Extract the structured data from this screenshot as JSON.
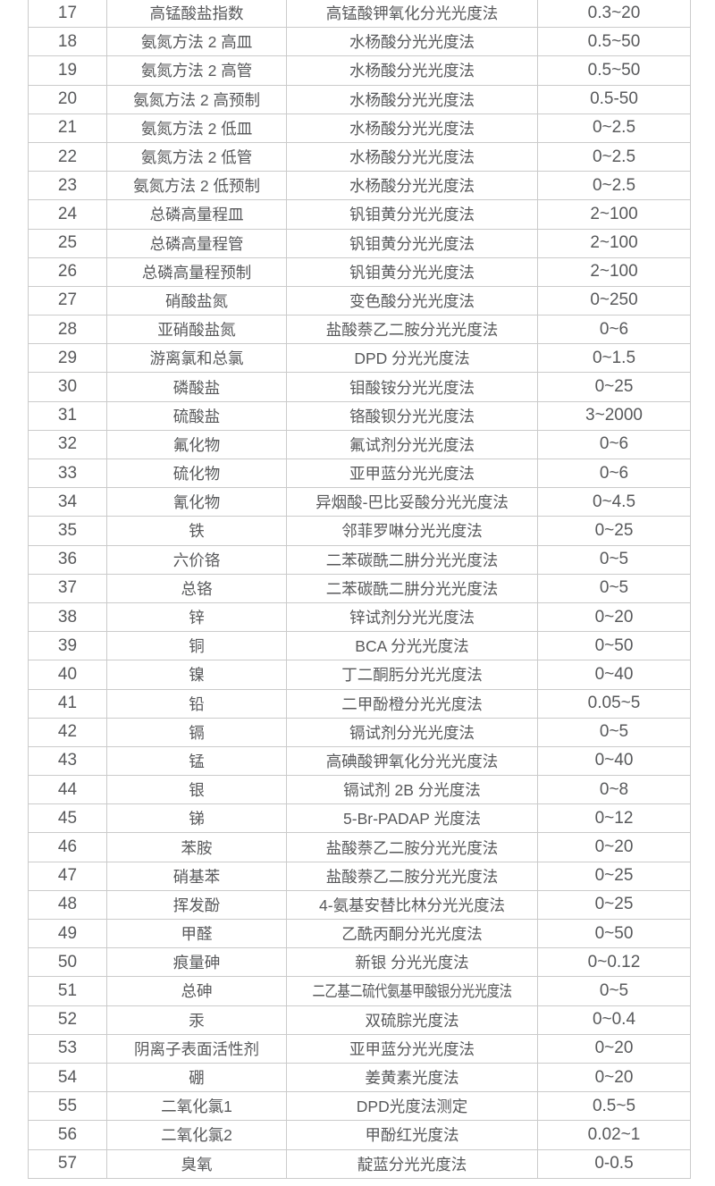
{
  "colors": {
    "background": "#ffffff",
    "text": "#58595b",
    "grid_border": "#cbcbcb"
  },
  "table": {
    "description": "Water quality parameter methods and ranges table, rows 17-57 (top row partially cropped)",
    "column_keys": [
      "index",
      "parameter",
      "method",
      "range"
    ],
    "rows": [
      [
        "17",
        "高锰酸盐指数",
        "高锰酸钾氧化分光光度法",
        "0.3~20"
      ],
      [
        "18",
        "氨氮方法 2 高皿",
        "水杨酸分光光度法",
        "0.5~50"
      ],
      [
        "19",
        "氨氮方法 2 高管",
        "水杨酸分光光度法",
        "0.5~50"
      ],
      [
        "20",
        "氨氮方法 2 高预制",
        "水杨酸分光光度法",
        "0.5-50"
      ],
      [
        "21",
        "氨氮方法 2 低皿",
        "水杨酸分光光度法",
        "0~2.5"
      ],
      [
        "22",
        "氨氮方法 2 低管",
        "水杨酸分光光度法",
        "0~2.5"
      ],
      [
        "23",
        "氨氮方法 2 低预制",
        "水杨酸分光光度法",
        "0~2.5"
      ],
      [
        "24",
        "总磷高量程皿",
        "钒钼黄分光光度法",
        "2~100"
      ],
      [
        "25",
        "总磷高量程管",
        "钒钼黄分光光度法",
        "2~100"
      ],
      [
        "26",
        "总磷高量程预制",
        "钒钼黄分光光度法",
        "2~100"
      ],
      [
        "27",
        "硝酸盐氮",
        "变色酸分光光度法",
        "0~250"
      ],
      [
        "28",
        "亚硝酸盐氮",
        "盐酸萘乙二胺分光光度法",
        "0~6"
      ],
      [
        "29",
        "游离氯和总氯",
        "DPD 分光光度法",
        "0~1.5"
      ],
      [
        "30",
        "磷酸盐",
        "钼酸铵分光光度法",
        "0~25"
      ],
      [
        "31",
        "硫酸盐",
        "铬酸钡分光光度法",
        "3~2000"
      ],
      [
        "32",
        "氟化物",
        "氟试剂分光光度法",
        "0~6"
      ],
      [
        "33",
        "硫化物",
        "亚甲蓝分光光度法",
        "0~6"
      ],
      [
        "34",
        "氰化物",
        "异烟酸-巴比妥酸分光光度法",
        "0~4.5"
      ],
      [
        "35",
        "铁",
        "邻菲罗啉分光光度法",
        "0~25"
      ],
      [
        "36",
        "六价铬",
        "二苯碳酰二肼分光光度法",
        "0~5"
      ],
      [
        "37",
        "总铬",
        "二苯碳酰二肼分光光度法",
        "0~5"
      ],
      [
        "38",
        "锌",
        "锌试剂分光光度法",
        "0~20"
      ],
      [
        "39",
        "铜",
        "BCA 分光光度法",
        "0~50"
      ],
      [
        "40",
        "镍",
        "丁二酮肟分光光度法",
        "0~40"
      ],
      [
        "41",
        "铅",
        "二甲酚橙分光光度法",
        "0.05~5"
      ],
      [
        "42",
        "镉",
        "镉试剂分光光度法",
        "0~5"
      ],
      [
        "43",
        "锰",
        "高碘酸钾氧化分光光度法",
        "0~40"
      ],
      [
        "44",
        "银",
        "镉试剂 2B 分光度法",
        "0~8"
      ],
      [
        "45",
        "锑",
        "5-Br-PADAP 光度法",
        "0~12"
      ],
      [
        "46",
        "苯胺",
        "盐酸萘乙二胺分光光度法",
        "0~20"
      ],
      [
        "47",
        "硝基苯",
        "盐酸萘乙二胺分光光度法",
        "0~25"
      ],
      [
        "48",
        "挥发酚",
        "4-氨基安替比林分光光度法",
        "0~25"
      ],
      [
        "49",
        "甲醛",
        "乙酰丙酮分光光度法",
        "0~50"
      ],
      [
        "50",
        "痕量砷",
        "新银 分光光度法",
        "0~0.12"
      ],
      [
        "51",
        "总砷",
        "二乙基二硫代氨基甲酸银分光光度法",
        "0~5"
      ],
      [
        "52",
        "汞",
        "双硫腙光度法",
        "0~0.4"
      ],
      [
        "53",
        "阴离子表面活性剂",
        "亚甲蓝分光光度法",
        "0~20"
      ],
      [
        "54",
        "硼",
        "姜黄素光度法",
        "0~20"
      ],
      [
        "55",
        "二氧化氯1",
        "DPD光度法测定",
        "0.5~5"
      ],
      [
        "56",
        "二氧化氯2",
        "甲酚红光度法",
        "0.02~1"
      ],
      [
        "57",
        "臭氧",
        "靛蓝分光光度法",
        "0-0.5"
      ]
    ]
  }
}
